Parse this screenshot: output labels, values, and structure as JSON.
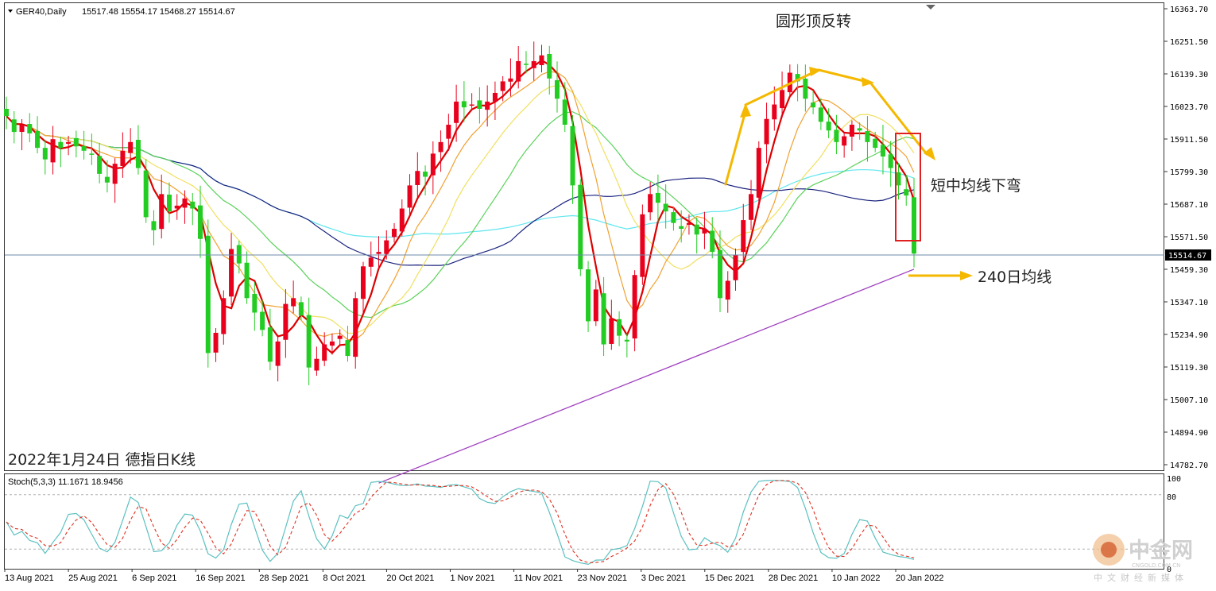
{
  "header": {
    "symbol": "GER40,Daily",
    "ohlc": "15517.48 15554.17 15468.27 15514.67",
    "caption": "2022年1月24日 德指日K线"
  },
  "annotations": {
    "rounding_top": "圆形顶反转",
    "ma_bend": "短中均线下弯",
    "ma240": "240日均线"
  },
  "stoch": {
    "label": "Stoch(5,3,3) 11.1671 18.9456"
  },
  "watermark": {
    "name": "中金网",
    "domain": "CNGOLD.COM.CN",
    "tagline": "中文财经新媒体"
  },
  "colors": {
    "bull": "#e8001c",
    "bear": "#22cc22",
    "ma_red": "#dd0000",
    "ma_orange": "#f0a030",
    "ma_yellow": "#f0e060",
    "ma_green": "#5ad25a",
    "ma_navy": "#1a237e",
    "ma_cyan": "#5ee6ee",
    "ma240": "#a040c0",
    "arrow": "#f5b800",
    "box": "#e02020",
    "stoch_main": "#5cc0c0",
    "stoch_signal": "#e03020"
  },
  "chart_data": {
    "type": "candlestick",
    "y_ticks": [
      "16363.70",
      "16251.50",
      "16139.30",
      "16023.70",
      "15911.50",
      "15799.30",
      "15687.10",
      "15571.50",
      "15459.30",
      "15347.10",
      "15234.90",
      "15119.30",
      "15007.10",
      "14894.90",
      "14782.70"
    ],
    "ylim": [
      14770,
      16375
    ],
    "last_price": "15514.67",
    "date_labels": [
      "13 Aug 2021",
      "25 Aug 2021",
      "6 Sep 2021",
      "16 Sep 2021",
      "28 Sep 2021",
      "8 Oct 2021",
      "20 Oct 2021",
      "1 Nov 2021",
      "11 Nov 2021",
      "23 Nov 2021",
      "3 Dec 2021",
      "15 Dec 2021",
      "28 Dec 2021",
      "10 Jan 2022",
      "20 Jan 2022"
    ],
    "closes": [
      15990,
      15935,
      15960,
      15930,
      15880,
      15840,
      15910,
      15880,
      15900,
      15885,
      15870,
      15860,
      15790,
      15760,
      15825,
      15870,
      15900,
      15810,
      15640,
      15595,
      15720,
      15660,
      15680,
      15705,
      15670,
      15565,
      15170,
      15240,
      15360,
      15530,
      15480,
      15360,
      15310,
      15250,
      15140,
      15210,
      15340,
      15360,
      15300,
      15120,
      15150,
      15200,
      15210,
      15230,
      15160,
      15360,
      15470,
      15500,
      15520,
      15560,
      15600,
      15670,
      15750,
      15800,
      15780,
      15860,
      15900,
      15960,
      16040,
      16020,
      16030,
      16015,
      16040,
      16070,
      16110,
      16120,
      16180,
      16170,
      16180,
      16200,
      16120,
      16050,
      15960,
      15750,
      15460,
      15280,
      15390,
      15200,
      15290,
      15230,
      15210,
      15440,
      15650,
      15720,
      15690,
      15660,
      15620,
      15600,
      15620,
      15580,
      15600,
      15520,
      15360,
      15420,
      15510,
      15630,
      15720,
      15880,
      15980,
      16030,
      16080,
      16140,
      16110,
      16050,
      16020,
      15970,
      15940,
      15900,
      15920,
      15960,
      15940,
      15900,
      15880,
      15850,
      15810,
      15750,
      15715,
      15514
    ],
    "ma240_endpoints": [
      14720,
      15460
    ],
    "stoch_ylim": [
      0,
      100
    ],
    "stoch_levels": [
      20,
      80
    ],
    "stoch_ticks": [
      "100",
      "80",
      "0"
    ]
  }
}
